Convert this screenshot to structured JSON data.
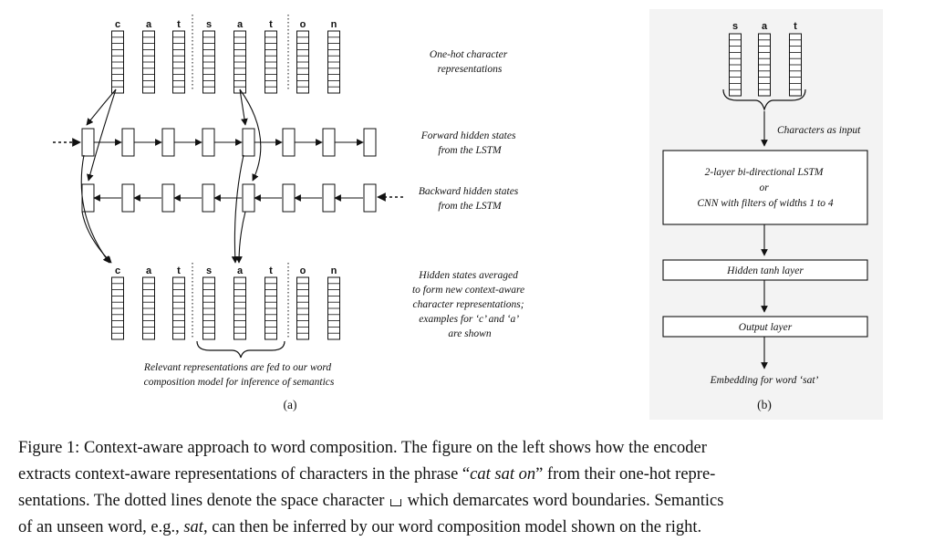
{
  "panel_a": {
    "chars": [
      "c",
      "a",
      "t",
      "s",
      "a",
      "t",
      "o",
      "n"
    ],
    "label_onehot": [
      "One-hot character",
      "representations"
    ],
    "label_forward": [
      "Forward hidden states",
      "from the LSTM"
    ],
    "label_backward": [
      "Backward hidden states",
      "from the LSTM"
    ],
    "label_averaged": [
      "Hidden states averaged",
      "to form new context-aware",
      "character representations;",
      "examples for ‘c’ and ‘a’",
      "are shown"
    ],
    "label_relevant": [
      "Relevant representations are fed to our word",
      "composition model for inference of semantics"
    ],
    "sublabel": "(a)"
  },
  "panel_b": {
    "chars": [
      "s",
      "a",
      "t"
    ],
    "label_input": "Characters as input",
    "box_lstm": [
      "2-layer bi-directional LSTM",
      "or",
      "CNN with filters of widths 1 to 4"
    ],
    "box_hidden": "Hidden tanh layer",
    "box_output": "Output layer",
    "label_embedding": "Embedding for word ‘sat’",
    "sublabel": "(b)"
  },
  "caption": {
    "line1": "Figure 1: Context-aware approach to word composition. The figure on the left shows how the encoder",
    "line2_a": "extracts context-aware representations of characters in the phrase “",
    "line2_i": "cat sat on",
    "line2_b": "” from their one-hot repre-",
    "line3_a": "sentations. The dotted lines denote the space character",
    "line3_b": "which demarcates word boundaries. Semantics",
    "line4_a": "of an unseen word, e.g., ",
    "line4_i": "sat",
    "line4_b": ", can then be inferred by our word composition model shown on the right."
  }
}
